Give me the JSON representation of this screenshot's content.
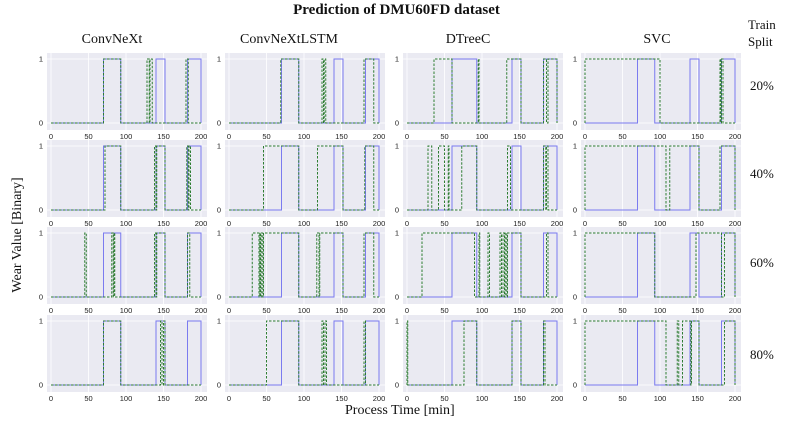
{
  "title": "Prediction of DMU60FD dataset",
  "xlabel": "Process Time [min]",
  "ylabel": "Wear Value [Binary]",
  "split_header": [
    "Train",
    "Split"
  ],
  "colors": {
    "background": "#eaeaf2",
    "actual": "#7b7bf0",
    "predicted": "#2e7d32"
  },
  "chart_data": {
    "type": "line",
    "xlim": [
      0,
      200
    ],
    "ylim": [
      0,
      1
    ],
    "xticks": [
      "0",
      "50",
      "100",
      "150",
      "200"
    ],
    "yticks": [
      "0",
      "1"
    ],
    "grid": true,
    "columns": [
      "ConvNeXt",
      "ConvNeXtLSTM",
      "DTreeC",
      "SVC"
    ],
    "rows": [
      "20%",
      "40%",
      "60%",
      "80%"
    ],
    "series_styles": {
      "actual": "solid",
      "predicted": "dashed"
    },
    "actual": [
      [
        [
          [
            70,
            93
          ],
          [
            140,
            152
          ],
          [
            182,
            200
          ]
        ],
        [
          [
            70,
            93
          ],
          [
            140,
            152
          ],
          [
            182,
            200
          ]
        ],
        [
          [
            60,
            93
          ],
          [
            140,
            152
          ],
          [
            182,
            200
          ]
        ],
        [
          [
            70,
            93
          ],
          [
            140,
            152
          ],
          [
            182,
            200
          ]
        ]
      ],
      [
        [
          [
            70,
            93
          ],
          [
            140,
            152
          ],
          [
            182,
            200
          ]
        ],
        [
          [
            70,
            93
          ],
          [
            140,
            152
          ],
          [
            182,
            200
          ]
        ],
        [
          [
            60,
            93
          ],
          [
            140,
            152
          ],
          [
            182,
            200
          ]
        ],
        [
          [
            70,
            93
          ],
          [
            140,
            152
          ],
          [
            182,
            200
          ]
        ]
      ],
      [
        [
          [
            70,
            93
          ],
          [
            140,
            152
          ],
          [
            182,
            200
          ]
        ],
        [
          [
            70,
            93
          ],
          [
            140,
            152
          ],
          [
            182,
            200
          ]
        ],
        [
          [
            60,
            93
          ],
          [
            140,
            152
          ],
          [
            182,
            200
          ]
        ],
        [
          [
            70,
            93
          ],
          [
            140,
            152
          ],
          [
            182,
            200
          ]
        ]
      ],
      [
        [
          [
            70,
            93
          ],
          [
            140,
            152
          ],
          [
            182,
            200
          ]
        ],
        [
          [
            70,
            93
          ],
          [
            140,
            152
          ],
          [
            182,
            200
          ]
        ],
        [
          [
            60,
            93
          ],
          [
            140,
            152
          ],
          [
            182,
            200
          ]
        ],
        [
          [
            70,
            93
          ],
          [
            140,
            152
          ],
          [
            182,
            200
          ]
        ]
      ]
    ],
    "predicted": [
      [
        [
          [
            70,
            93
          ],
          [
            128,
            131
          ],
          [
            132,
            135
          ],
          [
            180,
            183
          ]
        ],
        [
          [
            69,
            93
          ],
          [
            124,
            126
          ],
          [
            127,
            129
          ],
          [
            180,
            193
          ]
        ],
        [
          [
            36,
            60
          ],
          [
            95,
            96
          ],
          [
            133,
            152
          ],
          [
            182,
            186
          ],
          [
            188,
            200
          ]
        ],
        [
          [
            0,
            100
          ],
          [
            180,
            181
          ],
          [
            182,
            184
          ]
        ]
      ],
      [
        [
          [
            72,
            93
          ],
          [
            138,
            140
          ],
          [
            141,
            152
          ],
          [
            181,
            183
          ],
          [
            184,
            186
          ]
        ],
        [
          [
            46,
            93
          ],
          [
            118,
            152
          ],
          [
            181,
            193
          ]
        ],
        [
          [
            28,
            33
          ],
          [
            42,
            50
          ],
          [
            55,
            56
          ],
          [
            73,
            93
          ],
          [
            134,
            138
          ],
          [
            182,
            185
          ],
          [
            186,
            188
          ]
        ],
        [
          [
            0,
            108
          ],
          [
            113,
            152
          ],
          [
            180,
            200
          ]
        ]
      ],
      [
        [
          [
            45,
            47
          ],
          [
            81,
            83
          ],
          [
            84,
            85
          ],
          [
            138,
            140
          ],
          [
            141,
            152
          ],
          [
            182,
            185
          ]
        ],
        [
          [
            31,
            40
          ],
          [
            41,
            42
          ],
          [
            43,
            45
          ],
          [
            46,
            93
          ],
          [
            117,
            120
          ],
          [
            121,
            152
          ],
          [
            180,
            193
          ]
        ],
        [
          [
            20,
            90
          ],
          [
            96,
            97
          ],
          [
            108,
            110
          ],
          [
            124,
            126
          ],
          [
            128,
            130
          ],
          [
            131,
            133
          ],
          [
            134,
            152
          ],
          [
            186,
            188
          ]
        ],
        [
          [
            0,
            93
          ],
          [
            148,
            182
          ],
          [
            186,
            200
          ]
        ]
      ],
      [
        [
          [
            70,
            93
          ],
          [
            146,
            148
          ],
          [
            150,
            152
          ]
        ],
        [
          [
            50,
            93
          ],
          [
            124,
            126
          ],
          [
            128,
            130
          ],
          [
            180,
            182
          ]
        ],
        [
          [
            0,
            1
          ],
          [
            76,
            93
          ],
          [
            140,
            152
          ],
          [
            182,
            184
          ]
        ],
        [
          [
            0,
            108
          ],
          [
            123,
            125
          ],
          [
            130,
            141
          ],
          [
            142,
            152
          ],
          [
            186,
            200
          ]
        ]
      ]
    ]
  }
}
